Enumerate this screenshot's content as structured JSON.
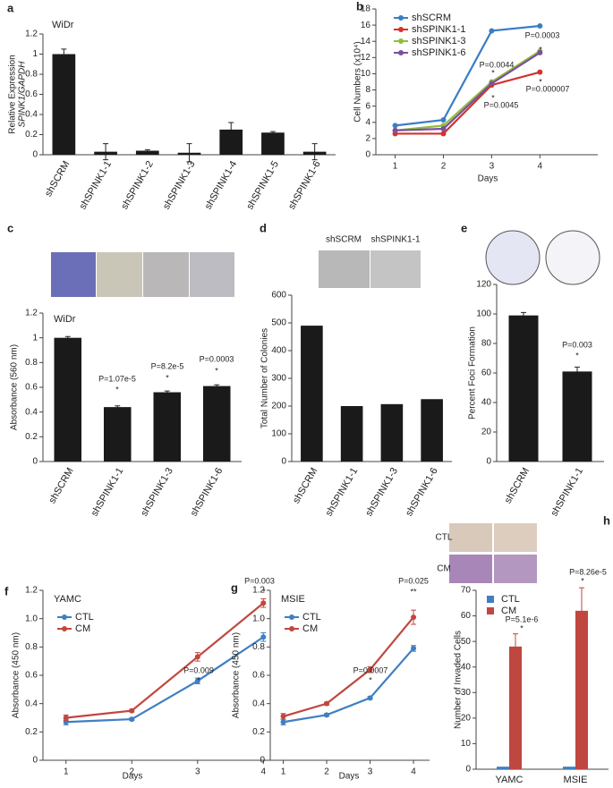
{
  "chart_data": [
    {
      "type": "bar",
      "panel": "a",
      "title": "WiDr",
      "ylabel": "Relative Expression",
      "ylabel2": "SPINK1/GAPDH",
      "categories": [
        "shSCRM",
        "shSPINK1-1",
        "shSPINK1-2",
        "shSPINK1-3",
        "shSPINK1-4",
        "shSPINK1-5",
        "shSPINK1-6"
      ],
      "values": [
        1.0,
        0.03,
        0.04,
        0.02,
        0.25,
        0.22,
        0.03
      ],
      "errors": [
        0.05,
        0.08,
        0.01,
        0.09,
        0.07,
        0.01,
        0.08
      ],
      "color": "#1a1a1a",
      "ylim": [
        0,
        1.2
      ],
      "yticks": [
        0,
        0.2,
        0.4,
        0.6,
        0.8,
        1,
        1.2
      ]
    },
    {
      "type": "line",
      "panel": "b",
      "ylabel": "Cell Numbers (x10⁴)",
      "xlabel": "Days",
      "legend": "upper-left",
      "x": [
        1,
        2,
        3,
        4
      ],
      "xlim": [
        0.6,
        5.2
      ],
      "xticks": [
        1,
        2,
        3,
        4
      ],
      "ylim": [
        0,
        18
      ],
      "yticks": [
        0,
        2,
        4,
        6,
        8,
        10,
        12,
        14,
        16,
        18
      ],
      "series": [
        {
          "name": "shSCRM",
          "color": "#3b7dc4",
          "values": [
            3.6,
            4.3,
            15.3,
            15.9
          ]
        },
        {
          "name": "shSPINK1-1",
          "color": "#d2332e",
          "values": [
            2.6,
            2.6,
            8.6,
            10.2
          ]
        },
        {
          "name": "shSPINK1-3",
          "color": "#8fbf3a",
          "values": [
            3.0,
            3.6,
            9.0,
            12.8
          ]
        },
        {
          "name": "shSPINK1-6",
          "color": "#7b4fa0",
          "values": [
            3.0,
            3.2,
            8.8,
            12.6
          ]
        }
      ],
      "annotations": [
        "P=0.0044",
        "*",
        "*",
        "P=0.0045",
        "P=0.0003",
        "*",
        "*",
        "P=0.000007"
      ]
    },
    {
      "type": "bar",
      "panel": "c",
      "title": "WiDr",
      "ylabel": "Absorbance (560 nm)",
      "categories": [
        "shSCRM",
        "shSPINK1-1",
        "shSPINK1-3",
        "shSPINK1-6"
      ],
      "values": [
        1.0,
        0.44,
        0.56,
        0.61
      ],
      "errors": [
        0.01,
        0.01,
        0.01,
        0.01
      ],
      "color": "#1a1a1a",
      "ylim": [
        0,
        1.2
      ],
      "yticks": [
        0,
        0.2,
        0.4,
        0.6,
        0.8,
        1,
        1.2
      ],
      "annotations": [
        "P=1.07e-5",
        "*",
        "P=8.2e-5",
        "*",
        "P=0.0003",
        "*"
      ]
    },
    {
      "type": "bar",
      "panel": "d",
      "ylabel": "Total Number of Colonies",
      "image_labels": [
        "shSCRM",
        "shSPINK1-1"
      ],
      "categories": [
        "shSCRM",
        "shSPINK1-1",
        "shSPINK1-3",
        "shSPINK1-6"
      ],
      "values": [
        490,
        200,
        207,
        225
      ],
      "color": "#1a1a1a",
      "ylim": [
        0,
        600
      ],
      "yticks": [
        0,
        100,
        200,
        300,
        400,
        500,
        600
      ]
    },
    {
      "type": "bar",
      "panel": "e",
      "ylabel": "Percent Foci Formation",
      "categories": [
        "shSCRM",
        "shSPINK1-1"
      ],
      "values": [
        99,
        61
      ],
      "errors": [
        2,
        3
      ],
      "color": "#1a1a1a",
      "ylim": [
        0,
        120
      ],
      "yticks": [
        0,
        20,
        40,
        60,
        80,
        100,
        120
      ],
      "annotations": [
        "P=0.003",
        "*"
      ]
    },
    {
      "type": "line",
      "panel": "f",
      "title": "YAMC",
      "ylabel": "Absorbance (450 nm)",
      "xlabel": "Days",
      "legend": "upper-left",
      "x": [
        1,
        2,
        3,
        4
      ],
      "xlim": [
        0.65,
        4.05
      ],
      "xticks": [
        1,
        2,
        3,
        4
      ],
      "ylim": [
        0,
        1.2
      ],
      "yticks": [
        0,
        0.2,
        0.4,
        0.6,
        0.8,
        {
          "value": 1,
          "label": "1.0"
        },
        1.2
      ],
      "series": [
        {
          "name": "CTL",
          "color": "#3f7fc2",
          "values": [
            0.27,
            0.29,
            0.56,
            0.87
          ],
          "errors": [
            0.02,
            0.01,
            0.02,
            0.03
          ]
        },
        {
          "name": "CM",
          "color": "#c0473f",
          "values": [
            0.3,
            0.35,
            0.73,
            1.11
          ],
          "errors": [
            0.02,
            0.01,
            0.03,
            0.03
          ]
        }
      ],
      "annotations": [
        "P=0.009",
        "*",
        "P=0.003",
        "*"
      ]
    },
    {
      "type": "line",
      "panel": "g",
      "title": "MSIE",
      "ylabel": "Absorbance (450 nm)",
      "xlabel": "Days",
      "legend": "upper-left",
      "x": [
        1,
        2,
        3,
        4
      ],
      "xlim": [
        0.7,
        4.37
      ],
      "xticks": [
        1,
        2,
        3,
        4
      ],
      "ylim": [
        0,
        1.2
      ],
      "yticks": [
        0,
        0.2,
        0.4,
        0.6,
        0.8,
        {
          "value": 1,
          "label": "1.0"
        },
        1.2
      ],
      "series": [
        {
          "name": "CTL",
          "color": "#3f7fc2",
          "values": [
            0.27,
            0.32,
            0.44,
            0.79
          ],
          "errors": [
            0.02,
            0.01,
            0.01,
            0.02
          ]
        },
        {
          "name": "CM",
          "color": "#c0473f",
          "values": [
            0.31,
            0.4,
            0.64,
            1.01
          ],
          "errors": [
            0.02,
            0.01,
            0.02,
            0.05
          ]
        }
      ],
      "annotations": [
        "P=0.0007",
        "*",
        "P=0.025",
        "**"
      ]
    },
    {
      "type": "grouped-bar",
      "panel": "h",
      "ylabel": "Number of Invaded Cells",
      "legend": "upper-left",
      "image_labels": [
        "CTL",
        "CM"
      ],
      "categories": [
        "YAMC",
        "MSIE"
      ],
      "ylim": [
        0,
        70
      ],
      "yticks": [
        0,
        10,
        20,
        30,
        40,
        50,
        60,
        70
      ],
      "series": [
        {
          "name": "CTL",
          "color": "#3f7fc2",
          "values": [
            1,
            1
          ]
        },
        {
          "name": "CM",
          "color": "#c0473f",
          "values": [
            48,
            62
          ],
          "errors": [
            5,
            9
          ]
        }
      ],
      "annotations": [
        "P=5.1e-6",
        "*",
        "P=8.26e-5",
        "*"
      ]
    }
  ]
}
